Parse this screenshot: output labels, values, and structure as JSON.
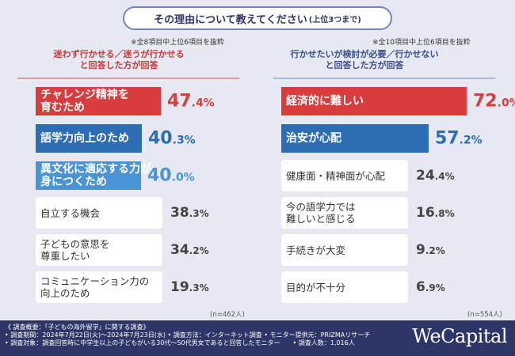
{
  "header": {
    "title": "その理由について教えてください",
    "title_suffix": "(上位3つまで)"
  },
  "footer": {
    "line1": "《 調査概要：「子どもの海外留学」に関する調査》",
    "line2": "• 調査期間：2024年7月22日(火)～2024年7月23日(水) • 調査方法：インターネット調査 • モニター提供元：PRIZMAリサーチ",
    "line3": "• 調査対象：調査回答時に中学生以上の子どもがいる30代～50代男女であると回答したモニター　　• 調査人数：1,016人",
    "brand": "WeCapital"
  },
  "chart_data": [
    {
      "type": "bar",
      "note": "※全8項目中上位6項目を抜粋",
      "subtitle_line1": "迷わず行かせる／迷うが行かせる",
      "subtitle_line2": "と回答した方が回答",
      "n_label": "(n=462人)",
      "categories": [
        [
          "チャレンジ精神を",
          "育むため"
        ],
        [
          "語学力向上のため"
        ],
        [
          "異文化に適応する力が",
          "身につくため"
        ],
        [
          "自立する機会"
        ],
        [
          "子どもの意思を",
          "尊重したい"
        ],
        [
          "コミュニケーション力の",
          "向上のため"
        ]
      ],
      "values": [
        47.4,
        40.3,
        40.0,
        38.3,
        34.2,
        19.3
      ],
      "int_parts": [
        "47",
        "40",
        "40",
        "38",
        "34",
        "19"
      ],
      "dec_parts": [
        ".4%",
        ".3%",
        ".0%",
        ".3%",
        ".2%",
        ".3%"
      ],
      "colors": [
        "#d93c3c",
        "#2d6db3",
        "#4a94d6",
        "none",
        "none",
        "none"
      ],
      "pct_colors": [
        "#d93c3c",
        "#2d6db3",
        "#4a94d6",
        "#444444",
        "#444444",
        "#444444"
      ],
      "highlight_count": 3,
      "xlim": [
        0,
        100
      ]
    },
    {
      "type": "bar",
      "note": "※全10項目中上位6項目を抜粋",
      "subtitle_line1": "行かせたいが検討が必要／行かせない",
      "subtitle_line2": "と回答した方が回答",
      "n_label": "(n=554人)",
      "categories": [
        [
          "経済的に難しい"
        ],
        [
          "治安が心配"
        ],
        [
          "健康面・精神面が心配"
        ],
        [
          "今の語学力では",
          "難しいと感じる"
        ],
        [
          "手続きが大変"
        ],
        [
          "目的が不十分"
        ]
      ],
      "values": [
        72.0,
        57.2,
        24.4,
        16.8,
        9.2,
        6.9
      ],
      "int_parts": [
        "72",
        "57",
        "24",
        "16",
        "9",
        "6"
      ],
      "dec_parts": [
        ".0%",
        ".2%",
        ".4%",
        ".8%",
        ".2%",
        ".9%"
      ],
      "colors": [
        "#d93c3c",
        "#2d6db3",
        "none",
        "none",
        "none",
        "none"
      ],
      "pct_colors": [
        "#d93c3c",
        "#2d6db3",
        "#444444",
        "#444444",
        "#444444",
        "#444444"
      ],
      "highlight_count": 2,
      "xlim": [
        0,
        100
      ]
    }
  ]
}
